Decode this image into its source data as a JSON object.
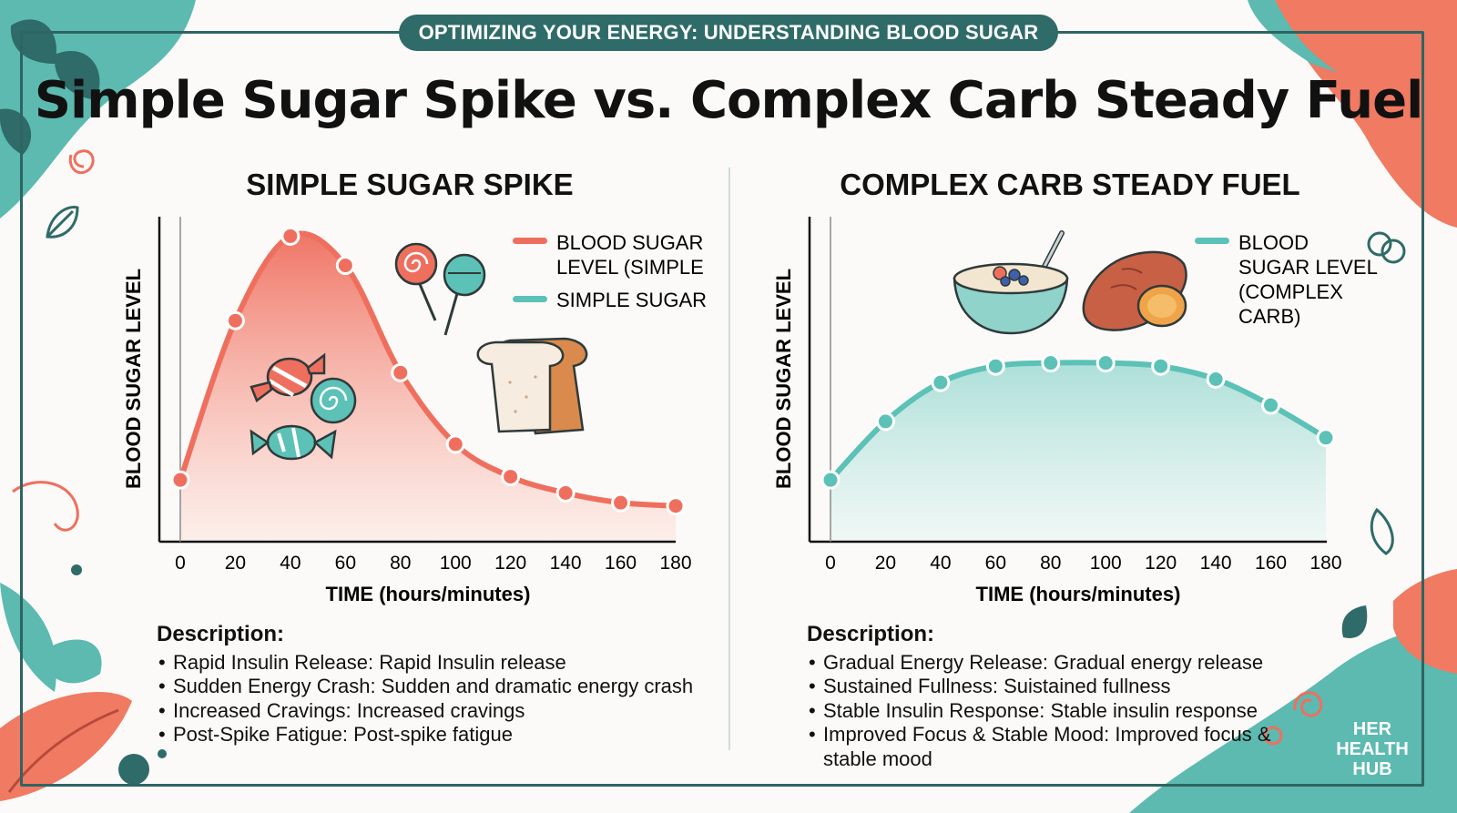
{
  "banner": "OPTIMIZING YOUR ENERGY: UNDERSTANDING BLOOD SUGAR",
  "title": "Simple Sugar Spike vs. Complex Carb Steady Fuel",
  "brand": [
    "HER",
    "HEALTH",
    "HUB"
  ],
  "colors": {
    "coral": "#ef6f5e",
    "teal": "#5cc1b6",
    "dark_teal": "#2f6b68"
  },
  "icons": [
    "lollipop-icon",
    "wrapped-candy-icon",
    "swirl-candy-icon",
    "bread-loaf-icon",
    "oatmeal-bowl-icon",
    "sweet-potato-icon",
    "leaf-icon",
    "swirl-icon"
  ],
  "chart_data": [
    {
      "type": "area",
      "title": "SIMPLE SUGAR SPIKE",
      "xlabel": "TIME (hours/minutes)",
      "ylabel": "BLOOD SUGAR LEVEL",
      "x": [
        0,
        20,
        40,
        60,
        80,
        100,
        120,
        140,
        160,
        180
      ],
      "xticks": [
        "0",
        "20",
        "40",
        "60",
        "80",
        "100",
        "120",
        "140",
        "160",
        "180"
      ],
      "xlim": [
        0,
        180
      ],
      "ylim": [
        0,
        100
      ],
      "series": [
        {
          "name": "BLOOD SUGAR LEVEL (SIMPLE",
          "color": "#ef6f5e",
          "values": [
            19,
            68,
            94,
            85,
            52,
            30,
            20,
            15,
            12,
            11
          ]
        }
      ],
      "legend": [
        {
          "label": "BLOOD SUGAR LEVEL (SIMPLE",
          "color": "#ef6f5e"
        },
        {
          "label": "SIMPLE SUGAR",
          "color": "#5cc1b6"
        }
      ],
      "legend_position": "top-right",
      "grid": false
    },
    {
      "type": "area",
      "title": "COMPLEX CARB STEADY FUEL",
      "xlabel": "TIME (hours/minutes)",
      "ylabel": "BLOOD SUGAR LEVEL",
      "x": [
        0,
        20,
        40,
        60,
        80,
        100,
        120,
        140,
        160,
        180
      ],
      "xticks": [
        "0",
        "20",
        "40",
        "60",
        "80",
        "100",
        "120",
        "140",
        "160",
        "180"
      ],
      "xlim": [
        0,
        180
      ],
      "ylim": [
        0,
        100
      ],
      "series": [
        {
          "name": "BLOOD SUGAR LEVEL (COMPLEX CARB)",
          "color": "#5cc1b6",
          "values": [
            19,
            37,
            49,
            54,
            55,
            55,
            54,
            50,
            42,
            32
          ]
        }
      ],
      "legend": [
        {
          "label": "BLOOD SUGAR LEVEL (COMPLEX CARB)",
          "color": "#5cc1b6"
        }
      ],
      "legend_position": "top-right",
      "grid": false
    }
  ],
  "descriptions": {
    "left": {
      "heading": "Description:",
      "items": [
        "Rapid Insulin Release: Rapid Insulin release",
        "Sudden Energy Crash: Sudden and dramatic energy crash",
        "Increased Cravings: Increased cravings",
        "Post-Spike Fatigue: Post-spike fatigue"
      ]
    },
    "right": {
      "heading": "Description:",
      "items": [
        "Gradual Energy Release: Gradual energy release",
        "Sustained Fullness: Suistained fullness",
        "Stable Insulin Response: Stable insulin response",
        "Improved Focus & Stable Mood: Improved focus & stable mood"
      ]
    }
  }
}
